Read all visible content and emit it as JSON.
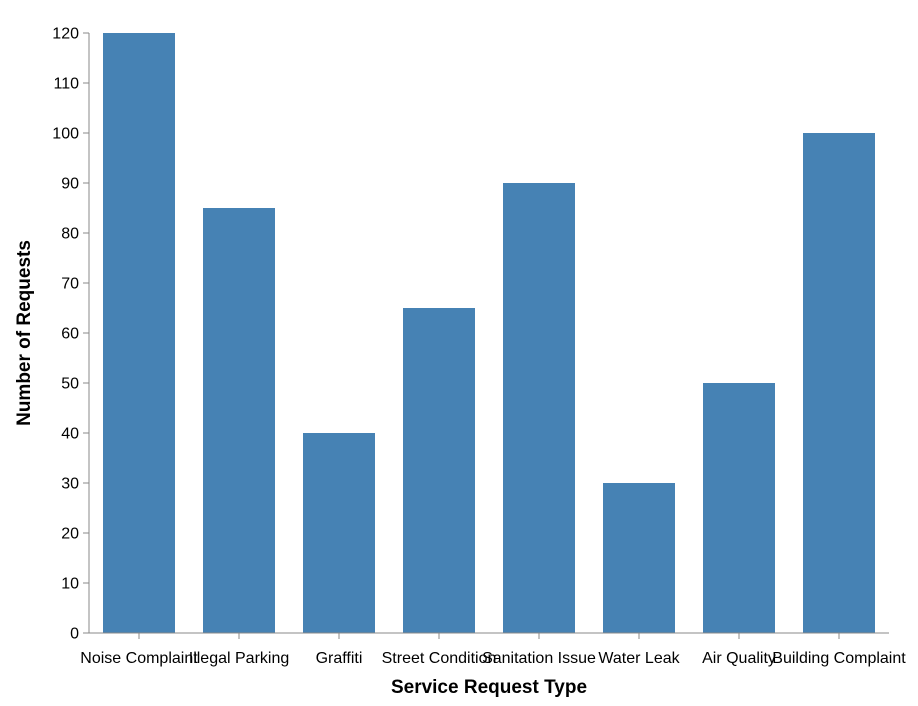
{
  "chart_data": {
    "type": "bar",
    "categories": [
      "Noise Complaint",
      "Illegal Parking",
      "Graffiti",
      "Street Condition",
      "Sanitation Issue",
      "Water Leak",
      "Air Quality",
      "Building Complaint"
    ],
    "values": [
      120,
      85,
      40,
      65,
      90,
      30,
      50,
      100
    ],
    "xlabel": "Service Request Type",
    "ylabel": "Number of Requests",
    "ylim": [
      0,
      120
    ],
    "yticks": [
      "0",
      "10",
      "20",
      "30",
      "40",
      "50",
      "60",
      "70",
      "80",
      "90",
      "100",
      "110",
      "120"
    ],
    "grid": false,
    "colors": {
      "bar": "#4682b4",
      "axis": "#888888"
    }
  }
}
